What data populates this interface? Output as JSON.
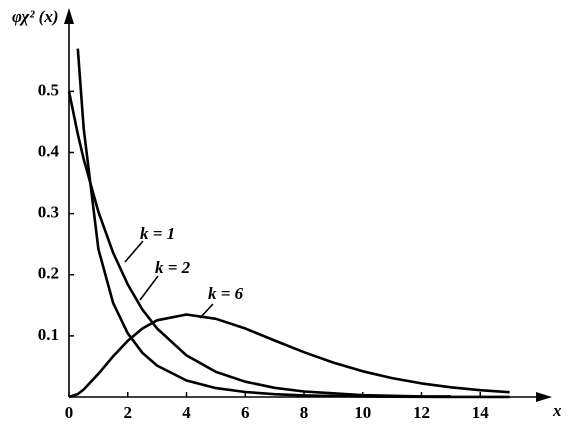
{
  "chart_data": {
    "type": "line",
    "y_label": "φχ² (x)",
    "x_label": "x",
    "x": [
      0,
      0.3,
      0.5,
      1,
      1.5,
      2,
      2.5,
      3,
      4,
      5,
      6,
      7,
      8,
      9,
      10,
      11,
      12,
      13,
      14,
      15
    ],
    "series": [
      {
        "name": "k = 1",
        "color": "#000000",
        "values": [
          null,
          0.57,
          0.439,
          0.242,
          0.154,
          0.104,
          0.0723,
          0.0514,
          0.027,
          0.0146,
          0.0081,
          0.0046,
          0.0026,
          0.0015,
          0.0009,
          0.0005,
          0.0003,
          0.0002,
          0.0001,
          0.0001
        ]
      },
      {
        "name": "k = 2",
        "color": "#000000",
        "values": [
          0.5,
          0.43,
          0.389,
          0.303,
          0.236,
          0.184,
          0.143,
          0.112,
          0.068,
          0.041,
          0.025,
          0.015,
          0.009,
          0.006,
          0.003,
          0.002,
          0.001,
          0.001,
          null,
          null
        ]
      },
      {
        "name": "k = 6",
        "color": "#000000",
        "values": [
          0,
          0.0048,
          0.0122,
          0.0379,
          0.0664,
          0.092,
          0.112,
          0.1255,
          0.135,
          0.128,
          0.112,
          0.0925,
          0.0733,
          0.0562,
          0.0421,
          0.0309,
          0.0223,
          0.0159,
          0.0112,
          0.0078
        ]
      }
    ],
    "xlim": [
      0,
      16
    ],
    "ylim": [
      0,
      0.62
    ],
    "xticks": [
      0,
      2,
      4,
      6,
      8,
      10,
      12,
      14
    ],
    "yticks": [
      0.1,
      0.2,
      0.3,
      0.4,
      0.5
    ],
    "grid": false
  }
}
